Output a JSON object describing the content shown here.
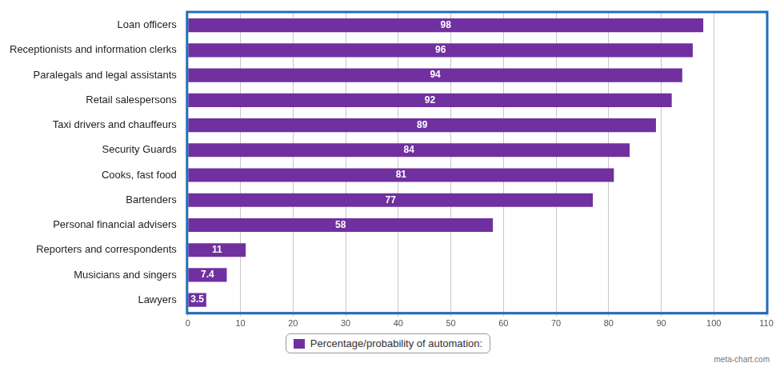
{
  "chart_data": {
    "type": "bar",
    "orientation": "horizontal",
    "categories": [
      "Loan officers",
      "Receptionists and information clerks",
      "Paralegals and legal assistants",
      "Retail salespersons",
      "Taxi drivers and chauffeurs",
      "Security Guards",
      "Cooks, fast food",
      "Bartenders",
      "Personal financial advisers",
      "Reporters and correspondents",
      "Musicians and singers",
      "Lawyers"
    ],
    "series": [
      {
        "name": "Percentage/probability of automation:",
        "color": "#7030a0",
        "values": [
          98,
          96,
          94,
          92,
          89,
          84,
          81,
          77,
          58,
          11,
          7.4,
          3.5
        ]
      }
    ],
    "xlim": [
      0,
      110
    ],
    "xticks": [
      0,
      10,
      20,
      30,
      40,
      50,
      60,
      70,
      80,
      90,
      100,
      110
    ],
    "grid": true,
    "legend": "bottom",
    "data_labels": true,
    "annotations": [
      "meta-chart.com"
    ]
  }
}
